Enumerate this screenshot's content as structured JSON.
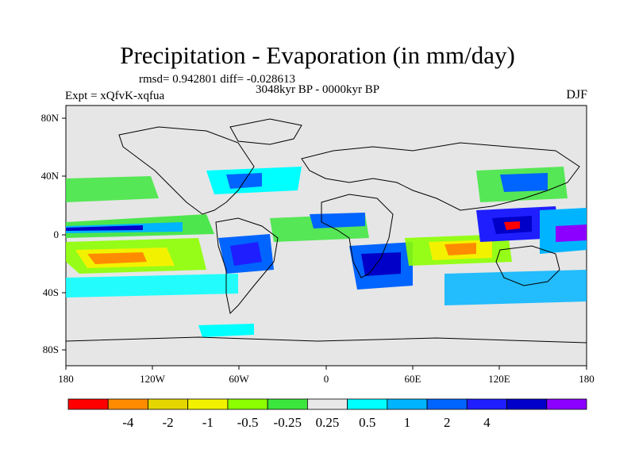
{
  "title": "Precipitation - Evaporation (in mm/day)",
  "stats": "rmsd= 0.942801 diff= -0.028613",
  "period": "3048kyr BP - 0000kyr BP",
  "experiment": "Expt = xQfvK-xqfua",
  "season": "DJF",
  "lat_ticks": [
    "80N",
    "40N",
    "0",
    "40S",
    "80S"
  ],
  "lon_ticks": [
    "180",
    "120W",
    "60W",
    "0",
    "60E",
    "120E",
    "180"
  ],
  "colorbar": {
    "colors": [
      "#ff0000",
      "#ff8c00",
      "#e6d600",
      "#f2f200",
      "#8cff00",
      "#3ce63c",
      "#e8e8e8",
      "#00ffff",
      "#00b4ff",
      "#0064ff",
      "#1e1eff",
      "#0000c8",
      "#8c00ff"
    ],
    "labels": [
      "-4",
      "-2",
      "-1",
      "-0.5",
      "-0.25",
      "0.25",
      "0.5",
      "1",
      "2",
      "4"
    ]
  },
  "colors": {
    "land_gray": "#e6e6e6",
    "coast": "#000000"
  }
}
